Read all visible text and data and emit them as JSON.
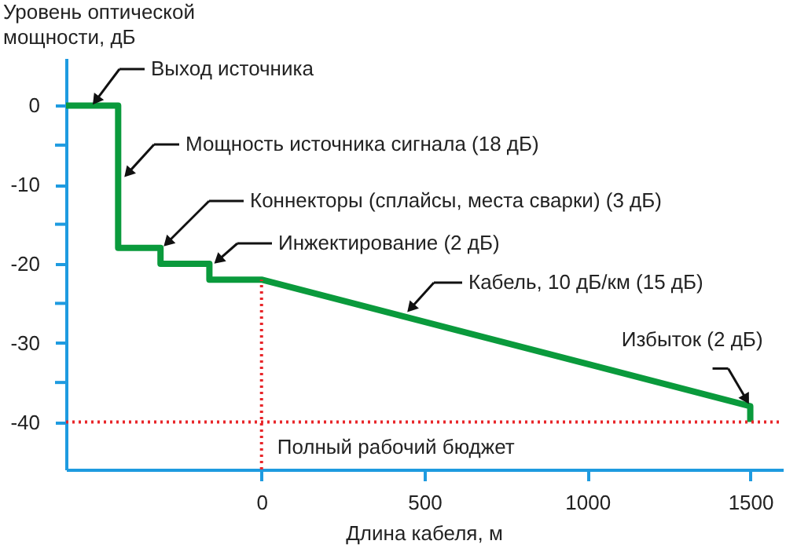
{
  "chart_data": {
    "type": "line",
    "ylabel": "Уровень оптической мощности, дБ",
    "xlabel": "Длина кабеля, м",
    "x": [
      -600,
      -440,
      -440,
      -310,
      -310,
      -160,
      -160,
      0,
      1500,
      1500
    ],
    "series": [
      {
        "color": "#0a9a3c",
        "values": [
          0,
          0,
          -18,
          -18,
          -20,
          -20,
          -22,
          -22,
          -38,
          -40
        ]
      }
    ],
    "xlim": [
      -600,
      1600
    ],
    "xticks": [
      0,
      500,
      1000,
      1500
    ],
    "ylim": [
      -46,
      6
    ],
    "yticks": [
      0,
      {
        "value": -5,
        "label": null
      },
      -10,
      {
        "value": -15,
        "label": null
      },
      -20,
      {
        "value": -25,
        "label": null
      },
      -30,
      {
        "value": -35,
        "label": null
      },
      -40
    ],
    "grid": false,
    "legend": false,
    "marker": "none",
    "line_style": "solid",
    "ref_lines": [
      {
        "axis": "y",
        "value": -40,
        "label": "Полный рабочий бюджет",
        "color": "#e8262a",
        "line_style": "dotted"
      },
      {
        "axis": "x",
        "value": 0,
        "color": "#e8262a",
        "line_style": "dotted"
      }
    ],
    "annotations": [
      "Выход источника",
      "Мощность источника сигнала (18 дБ)",
      "Коннекторы (сплайсы, места сварки) (3 дБ)",
      "Инжектирование (2 дБ)",
      "Кабель, 10 дБ/км (15 дБ)",
      {
        "text": "Избыток (2 дБ)",
        "x": 1500,
        "y": -38
      }
    ]
  }
}
